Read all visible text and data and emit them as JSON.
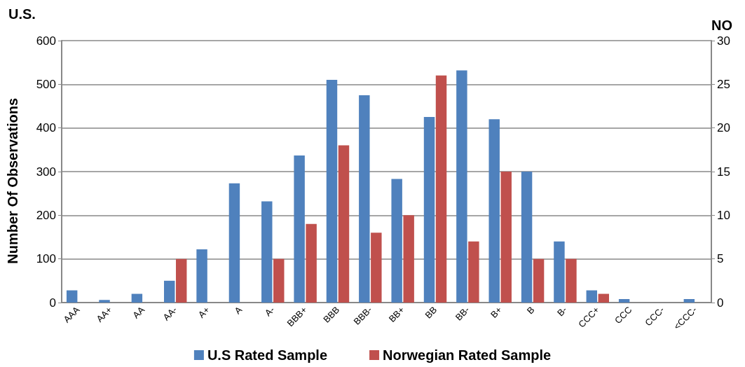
{
  "chart_data": {
    "type": "bar",
    "ylabel": "Number Of Observations",
    "y2label": "NO",
    "annotations": [
      "U.S."
    ],
    "categories": [
      "AAA",
      "AA+",
      "AA",
      "AA-",
      "A+",
      "A",
      "A-",
      "BBB+",
      "BBB",
      "BBB-",
      "BB+",
      "BB",
      "BB-",
      "B+",
      "B",
      "B-",
      "CCC+",
      "CCC",
      "CCC-",
      "<CCC-"
    ],
    "series": [
      {
        "name": "U.S Rated Sample",
        "color": "#4f81bd",
        "values": [
          28,
          6,
          20,
          50,
          122,
          273,
          232,
          337,
          510,
          475,
          283,
          425,
          532,
          420,
          300,
          140,
          28,
          8,
          0,
          8
        ]
      },
      {
        "name": "Norwegian Rated Sample",
        "color": "#c0504d",
        "axis": "y2",
        "values": [
          0,
          0,
          0,
          5,
          0,
          0,
          5,
          9,
          18,
          8,
          10,
          26,
          7,
          15,
          5,
          5,
          1,
          0,
          0,
          0
        ]
      }
    ],
    "ylim": [
      0,
      600
    ],
    "yticks": [
      0,
      100,
      200,
      300,
      400,
      500,
      600
    ],
    "y2lim": [
      0,
      30
    ],
    "y2ticks": [
      0,
      5,
      10,
      15,
      20,
      25,
      30
    ],
    "grid": "y",
    "legend": "bottom"
  }
}
